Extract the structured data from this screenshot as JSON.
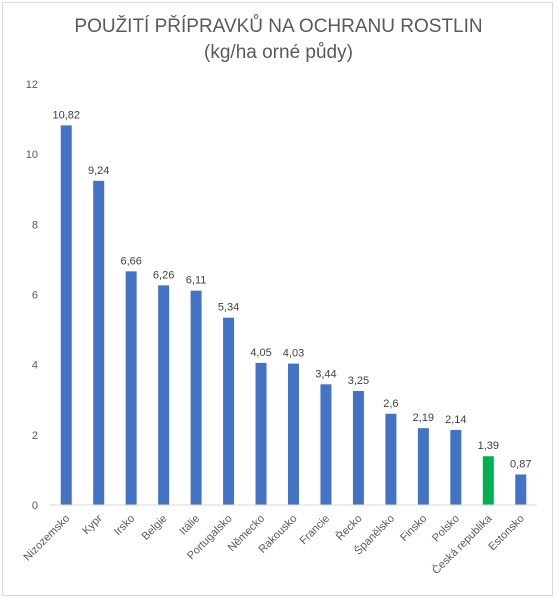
{
  "chart_data": {
    "type": "bar",
    "title": "POUŽITÍ PŘÍPRAVKŮ NA OCHRANU ROSTLIN",
    "subtitle": "(kg/ha orné půdy)",
    "xlabel": "",
    "ylabel": "",
    "ylim": [
      0,
      12
    ],
    "yticks": [
      0,
      2,
      4,
      6,
      8,
      10,
      12
    ],
    "grid": false,
    "legend": "none",
    "categories": [
      "Nizozemsko",
      "Kypr",
      "Irsko",
      "Belgie",
      "Itálie",
      "Portugalsko",
      "Německo",
      "Rakousko",
      "Francie",
      "Řecko",
      "Španělsko",
      "Finsko",
      "Polsko",
      "Česká republika",
      "Estonsko"
    ],
    "values": [
      10.82,
      9.24,
      6.66,
      6.26,
      6.11,
      5.34,
      4.05,
      4.03,
      3.44,
      3.25,
      2.6,
      2.19,
      2.14,
      1.39,
      0.87
    ],
    "value_labels": [
      "10,82",
      "9,24",
      "6,66",
      "6,26",
      "6,11",
      "5,34",
      "4,05",
      "4,03",
      "3,44",
      "3,25",
      "2,6",
      "2,19",
      "2,14",
      "1,39",
      "0,87"
    ],
    "colors": {
      "default": "#4472c4",
      "highlight": "#00b050",
      "highlight_category": "Česká republika"
    }
  }
}
